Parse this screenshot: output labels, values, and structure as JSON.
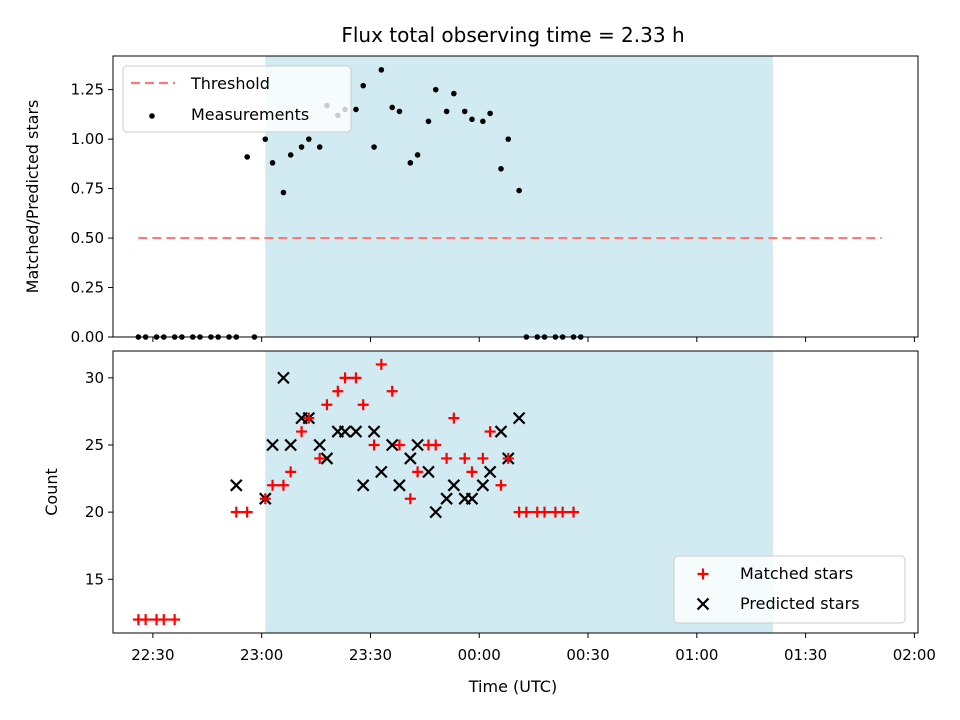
{
  "figure": {
    "title": "Flux total observing time = 2.33 h",
    "xlabel": "Time (UTC)",
    "x_ticks": [
      "22:30",
      "23:00",
      "23:30",
      "00:00",
      "00:30",
      "01:00",
      "01:30",
      "02:00"
    ]
  },
  "chart_data": [
    {
      "type": "scatter",
      "ylabel": "Matched/Predicted stars",
      "ylim": [
        0,
        1.42
      ],
      "yticks": [
        "0.00",
        "0.25",
        "0.50",
        "0.75",
        "1.00",
        "1.25"
      ],
      "xlim": [
        "22:19",
        "02:01"
      ],
      "shaded_span": {
        "start": "23:01",
        "end": "01:21",
        "color": "#add8e6"
      },
      "legend": {
        "placement": "top-left",
        "entries": [
          {
            "label": "Threshold",
            "style": "dashed-line",
            "color": "#ff7777"
          },
          {
            "label": "Measurements",
            "style": "dot",
            "color": "#000000"
          }
        ]
      },
      "threshold": {
        "value": 0.5,
        "x_start": "22:26",
        "x_end": "01:51"
      },
      "x": [
        "22:26",
        "22:28",
        "22:31",
        "22:33",
        "22:36",
        "22:38",
        "22:41",
        "22:43",
        "22:46",
        "22:48",
        "22:51",
        "22:53",
        "22:56",
        "22:58",
        "23:01",
        "23:03",
        "23:06",
        "23:08",
        "23:11",
        "23:13",
        "23:16",
        "23:18",
        "23:21",
        "23:23",
        "23:26",
        "23:28",
        "23:31",
        "23:33",
        "23:36",
        "23:38",
        "23:41",
        "23:43",
        "23:46",
        "23:48",
        "23:51",
        "23:53",
        "23:56",
        "23:58",
        "00:01",
        "00:03",
        "00:06",
        "00:08",
        "00:11",
        "00:13",
        "00:16",
        "00:18",
        "00:21",
        "00:23",
        "00:26",
        "00:28",
        "00:31",
        "00:33",
        "00:36",
        "00:38",
        "00:41",
        "00:43",
        "00:46",
        "00:48",
        "00:51",
        "00:53",
        "00:56",
        "00:58",
        "01:01",
        "01:03",
        "01:06",
        "01:08",
        "01:11",
        "01:13",
        "01:16",
        "01:18",
        "01:21",
        "01:23",
        "01:26",
        "01:28",
        "01:31",
        "01:33",
        "01:36",
        "01:38",
        "01:41",
        "01:43",
        "01:46",
        "01:48",
        "01:51"
      ],
      "measurements": [
        {
          "x": "22:26",
          "y": 0.0
        },
        {
          "x": "22:28",
          "y": 0.0
        },
        {
          "x": "22:31",
          "y": 0.0
        },
        {
          "x": "22:33",
          "y": 0.0
        },
        {
          "x": "22:36",
          "y": 0.0
        },
        {
          "x": "22:38",
          "y": 0.0
        },
        {
          "x": "22:41",
          "y": 0.0
        },
        {
          "x": "22:43",
          "y": 0.0
        },
        {
          "x": "22:46",
          "y": 0.0
        },
        {
          "x": "22:48",
          "y": 0.0
        },
        {
          "x": "22:51",
          "y": 0.0
        },
        {
          "x": "22:53",
          "y": 0.0
        },
        {
          "x": "22:56",
          "y": 0.91
        },
        {
          "x": "22:58",
          "y": 0.0
        },
        {
          "x": "23:01",
          "y": 1.0
        },
        {
          "x": "23:03",
          "y": 0.88
        },
        {
          "x": "23:06",
          "y": 0.73
        },
        {
          "x": "23:08",
          "y": 0.92
        },
        {
          "x": "23:11",
          "y": 0.96
        },
        {
          "x": "23:13",
          "y": 1.0
        },
        {
          "x": "23:16",
          "y": 0.96
        },
        {
          "x": "23:18",
          "y": 1.17
        },
        {
          "x": "23:21",
          "y": 1.12
        },
        {
          "x": "23:23",
          "y": 1.15
        },
        {
          "x": "23:26",
          "y": 1.15
        },
        {
          "x": "23:28",
          "y": 1.27
        },
        {
          "x": "23:31",
          "y": 0.96
        },
        {
          "x": "23:33",
          "y": 1.35
        },
        {
          "x": "23:36",
          "y": 1.16
        },
        {
          "x": "23:38",
          "y": 1.14
        },
        {
          "x": "23:41",
          "y": 0.88
        },
        {
          "x": "23:43",
          "y": 0.92
        },
        {
          "x": "23:46",
          "y": 1.09
        },
        {
          "x": "23:48",
          "y": 1.25
        },
        {
          "x": "23:51",
          "y": 1.14
        },
        {
          "x": "23:53",
          "y": 1.23
        },
        {
          "x": "23:56",
          "y": 1.14
        },
        {
          "x": "23:58",
          "y": 1.1
        },
        {
          "x": "00:01",
          "y": 1.09
        },
        {
          "x": "00:03",
          "y": 1.13
        },
        {
          "x": "00:06",
          "y": 0.85
        },
        {
          "x": "00:08",
          "y": 1.0
        },
        {
          "x": "00:11",
          "y": 0.74
        },
        {
          "x": "00:13",
          "y": 0.0
        },
        {
          "x": "00:16",
          "y": 0.0
        },
        {
          "x": "00:18",
          "y": 0.0
        },
        {
          "x": "00:21",
          "y": 0.0
        },
        {
          "x": "00:23",
          "y": 0.0
        },
        {
          "x": "00:26",
          "y": 0.0
        },
        {
          "x": "00:28",
          "y": 0.0
        }
      ]
    },
    {
      "type": "scatter",
      "ylabel": "Count",
      "ylim": [
        11,
        32
      ],
      "yticks": [
        "15",
        "20",
        "25",
        "30"
      ],
      "xlim": [
        "22:19",
        "02:01"
      ],
      "shaded_span": {
        "start": "23:01",
        "end": "01:21",
        "color": "#add8e6"
      },
      "legend": {
        "placement": "lower-right",
        "entries": [
          {
            "label": "Matched stars",
            "style": "plus",
            "color": "#ff0000"
          },
          {
            "label": "Predicted stars",
            "style": "cross",
            "color": "#000000"
          }
        ]
      },
      "series": [
        {
          "name": "Matched stars",
          "points": [
            {
              "x": "22:26",
              "y": 12
            },
            {
              "x": "22:28",
              "y": 12
            },
            {
              "x": "22:31",
              "y": 12
            },
            {
              "x": "22:33",
              "y": 12
            },
            {
              "x": "22:36",
              "y": 12
            },
            {
              "x": "22:53",
              "y": 20
            },
            {
              "x": "22:56",
              "y": 20
            },
            {
              "x": "23:01",
              "y": 21
            },
            {
              "x": "23:03",
              "y": 22
            },
            {
              "x": "23:06",
              "y": 22
            },
            {
              "x": "23:08",
              "y": 23
            },
            {
              "x": "23:11",
              "y": 26
            },
            {
              "x": "23:13",
              "y": 27
            },
            {
              "x": "23:16",
              "y": 24
            },
            {
              "x": "23:18",
              "y": 28
            },
            {
              "x": "23:21",
              "y": 29
            },
            {
              "x": "23:23",
              "y": 30
            },
            {
              "x": "23:26",
              "y": 30
            },
            {
              "x": "23:28",
              "y": 28
            },
            {
              "x": "23:31",
              "y": 25
            },
            {
              "x": "23:33",
              "y": 31
            },
            {
              "x": "23:36",
              "y": 29
            },
            {
              "x": "23:38",
              "y": 25
            },
            {
              "x": "23:41",
              "y": 21
            },
            {
              "x": "23:43",
              "y": 23
            },
            {
              "x": "23:46",
              "y": 25
            },
            {
              "x": "23:48",
              "y": 25
            },
            {
              "x": "23:51",
              "y": 24
            },
            {
              "x": "23:53",
              "y": 27
            },
            {
              "x": "23:56",
              "y": 24
            },
            {
              "x": "23:58",
              "y": 23
            },
            {
              "x": "00:01",
              "y": 24
            },
            {
              "x": "00:03",
              "y": 26
            },
            {
              "x": "00:06",
              "y": 22
            },
            {
              "x": "00:08",
              "y": 24
            },
            {
              "x": "00:11",
              "y": 20
            },
            {
              "x": "00:13",
              "y": 20
            },
            {
              "x": "00:16",
              "y": 20
            },
            {
              "x": "00:18",
              "y": 20
            },
            {
              "x": "00:21",
              "y": 20
            },
            {
              "x": "00:23",
              "y": 20
            },
            {
              "x": "00:26",
              "y": 20
            }
          ]
        },
        {
          "name": "Predicted stars",
          "points": [
            {
              "x": "22:53",
              "y": 22
            },
            {
              "x": "23:01",
              "y": 21
            },
            {
              "x": "23:03",
              "y": 25
            },
            {
              "x": "23:06",
              "y": 30
            },
            {
              "x": "23:08",
              "y": 25
            },
            {
              "x": "23:11",
              "y": 27
            },
            {
              "x": "23:13",
              "y": 27
            },
            {
              "x": "23:16",
              "y": 25
            },
            {
              "x": "23:18",
              "y": 24
            },
            {
              "x": "23:21",
              "y": 26
            },
            {
              "x": "23:23",
              "y": 26
            },
            {
              "x": "23:26",
              "y": 26
            },
            {
              "x": "23:28",
              "y": 22
            },
            {
              "x": "23:31",
              "y": 26
            },
            {
              "x": "23:33",
              "y": 23
            },
            {
              "x": "23:36",
              "y": 25
            },
            {
              "x": "23:38",
              "y": 22
            },
            {
              "x": "23:41",
              "y": 24
            },
            {
              "x": "23:43",
              "y": 25
            },
            {
              "x": "23:46",
              "y": 23
            },
            {
              "x": "23:48",
              "y": 20
            },
            {
              "x": "23:51",
              "y": 21
            },
            {
              "x": "23:53",
              "y": 22
            },
            {
              "x": "23:56",
              "y": 21
            },
            {
              "x": "23:58",
              "y": 21
            },
            {
              "x": "00:01",
              "y": 22
            },
            {
              "x": "00:03",
              "y": 23
            },
            {
              "x": "00:06",
              "y": 26
            },
            {
              "x": "00:08",
              "y": 24
            },
            {
              "x": "00:11",
              "y": 27
            }
          ]
        }
      ]
    }
  ]
}
